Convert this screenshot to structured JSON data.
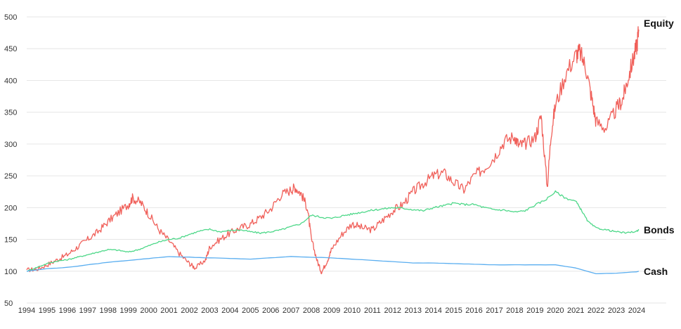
{
  "chart_data": {
    "type": "line",
    "title": "",
    "xlabel": "",
    "ylabel": "",
    "xlim": [
      1994,
      2024.15
    ],
    "ylim": [
      50,
      500
    ],
    "grid": true,
    "y_ticks": [
      "50",
      "100",
      "150",
      "200",
      "250",
      "300",
      "350",
      "400",
      "450",
      "500"
    ],
    "x_ticks": [
      "1994",
      "1995",
      "1996",
      "1997",
      "1998",
      "1999",
      "2000",
      "2001",
      "2002",
      "2003",
      "2004",
      "2005",
      "2006",
      "2007",
      "2008",
      "2009",
      "2010",
      "2011",
      "2012",
      "2013",
      "2014",
      "2015",
      "2016",
      "2017",
      "2018",
      "2019",
      "2020",
      "2021",
      "2022",
      "2023",
      "2024"
    ],
    "series": [
      {
        "name": "Equity",
        "color": "#f0605a",
        "x": [
          1994,
          1994.5,
          1995,
          1995.5,
          1996,
          1996.5,
          1997,
          1997.5,
          1998,
          1998.5,
          1999,
          1999.2,
          1999.6,
          2000,
          2000.5,
          2001,
          2001.5,
          2002,
          2002.3,
          2002.8,
          2003,
          2003.5,
          2004,
          2004.5,
          2005,
          2005.5,
          2006,
          2006.5,
          2007,
          2007.2,
          2007.5,
          2007.8,
          2008,
          2008.3,
          2008.5,
          2008.8,
          2009,
          2009.5,
          2010,
          2010.5,
          2011,
          2011.5,
          2012,
          2012.5,
          2013,
          2013.5,
          2014,
          2014.5,
          2015,
          2015.5,
          2016,
          2016.5,
          2017,
          2017.5,
          2018,
          2018.2,
          2018.5,
          2019,
          2019.3,
          2019.6,
          2019.8,
          2020,
          2020.5,
          2021,
          2021.2,
          2021.5,
          2021.8,
          2022,
          2022.5,
          2023,
          2023.3,
          2023.5,
          2023.8,
          2024,
          2024.1
        ],
        "values": [
          102,
          103,
          110,
          118,
          126,
          138,
          150,
          162,
          178,
          192,
          205,
          215,
          208,
          190,
          165,
          148,
          128,
          112,
          105,
          118,
          138,
          150,
          160,
          168,
          174,
          185,
          198,
          220,
          228,
          232,
          222,
          200,
          150,
          115,
          98,
          118,
          135,
          158,
          175,
          168,
          165,
          180,
          195,
          205,
          225,
          238,
          250,
          255,
          240,
          228,
          250,
          262,
          280,
          305,
          312,
          298,
          300,
          310,
          345,
          232,
          320,
          360,
          410,
          440,
          445,
          420,
          370,
          335,
          325,
          355,
          370,
          395,
          430,
          455,
          480
        ]
      },
      {
        "name": "Bonds",
        "color": "#4ed889",
        "x": [
          1994,
          1994.5,
          1995,
          1995.5,
          1996,
          1996.5,
          1997,
          1997.5,
          1998,
          1998.5,
          1999,
          1999.5,
          2000,
          2000.5,
          2001,
          2001.5,
          2002,
          2002.5,
          2003,
          2003.5,
          2004,
          2004.5,
          2005,
          2005.5,
          2006,
          2006.5,
          2007,
          2007.5,
          2008,
          2008.5,
          2009,
          2009.5,
          2010,
          2010.5,
          2011,
          2011.5,
          2012,
          2012.5,
          2013,
          2013.5,
          2014,
          2014.5,
          2015,
          2015.5,
          2016,
          2016.5,
          2017,
          2017.5,
          2018,
          2018.5,
          2019,
          2019.5,
          2020,
          2020.5,
          2021,
          2021.3,
          2021.6,
          2022,
          2022.5,
          2023,
          2023.5,
          2024,
          2024.1
        ],
        "values": [
          100,
          106,
          112,
          116,
          118,
          122,
          126,
          130,
          134,
          133,
          130,
          134,
          140,
          146,
          150,
          152,
          158,
          163,
          166,
          162,
          164,
          165,
          162,
          160,
          162,
          165,
          170,
          175,
          188,
          185,
          183,
          187,
          190,
          193,
          196,
          198,
          200,
          199,
          197,
          195,
          200,
          203,
          207,
          205,
          205,
          200,
          197,
          196,
          193,
          195,
          204,
          212,
          225,
          215,
          210,
          195,
          178,
          168,
          165,
          162,
          160,
          163,
          165
        ]
      },
      {
        "name": "Cash",
        "color": "#5aaef0",
        "x": [
          1994,
          1995,
          1996,
          1997,
          1998,
          1999,
          2000,
          2001,
          2002,
          2003,
          2004,
          2005,
          2006,
          2007,
          2008,
          2009,
          2010,
          2011,
          2012,
          2013,
          2014,
          2015,
          2016,
          2017,
          2018,
          2019,
          2020,
          2021,
          2022,
          2023,
          2024,
          2024.1
        ],
        "values": [
          100,
          104,
          106,
          110,
          114,
          117,
          120,
          123,
          122,
          121,
          120,
          119,
          121,
          123,
          122,
          121,
          119,
          117,
          115,
          113,
          113,
          112,
          111,
          110,
          110,
          110,
          110,
          105,
          96,
          97,
          99,
          100
        ]
      }
    ]
  }
}
